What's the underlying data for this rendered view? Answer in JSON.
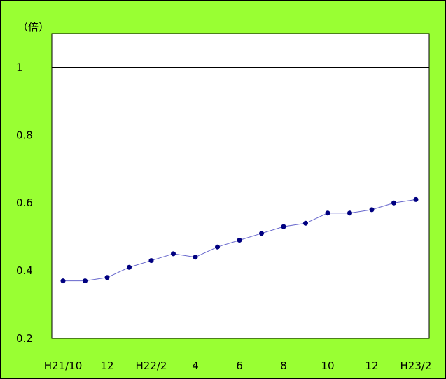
{
  "chart_data": {
    "type": "line",
    "ylabel": "（倍）",
    "xlabel": "",
    "ylim": [
      0.2,
      1.1
    ],
    "yticks": [
      0.2,
      0.4,
      0.6,
      0.8,
      1
    ],
    "ytick_labels": [
      "0.2",
      "0.4",
      "0.6",
      "0.8",
      "1"
    ],
    "reference_line": 1,
    "grid": false,
    "x_tick_labels": [
      {
        "index": 0,
        "label": "H21/10"
      },
      {
        "index": 2,
        "label": "12"
      },
      {
        "index": 4,
        "label": "H22/2"
      },
      {
        "index": 6,
        "label": "4"
      },
      {
        "index": 8,
        "label": "6"
      },
      {
        "index": 10,
        "label": "8"
      },
      {
        "index": 12,
        "label": "10"
      },
      {
        "index": 14,
        "label": "12"
      },
      {
        "index": 16,
        "label": "H23/2"
      }
    ],
    "series": [
      {
        "values": [
          0.37,
          0.37,
          0.38,
          0.41,
          0.43,
          0.45,
          0.44,
          0.47,
          0.49,
          0.51,
          0.53,
          0.54,
          0.57,
          0.57,
          0.58,
          0.6,
          0.61
        ]
      }
    ],
    "colors": {
      "background": "#99ff33",
      "plot_area": "#ffffff",
      "line": "#6666cc",
      "marker": "#000080"
    }
  }
}
